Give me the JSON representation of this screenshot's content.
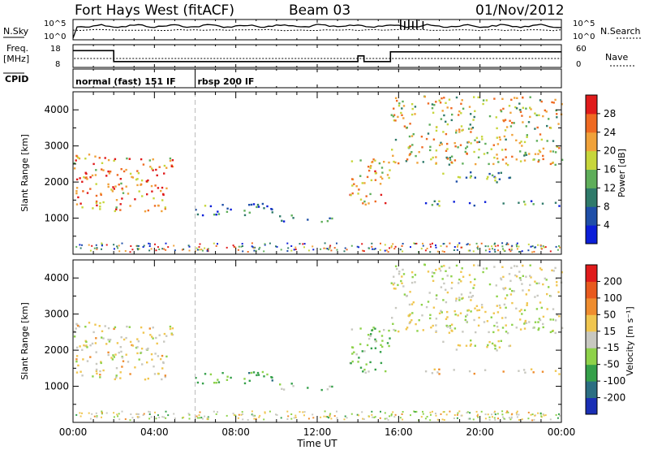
{
  "header": {
    "title": "Fort Hays West (fitACF)",
    "beam": "Beam 03",
    "date": "01/Nov/2012"
  },
  "noise_panel": {
    "left_label": "N.Sky",
    "right_label": "N.Search",
    "left_ticks": [
      "10^5",
      "10^0"
    ],
    "right_ticks": [
      "10^5",
      "10^0"
    ]
  },
  "freq_panel": {
    "left_label_line1": "Freq.",
    "left_label_line2": "[MHz]",
    "right_label": "Nave",
    "left_ticks": [
      "18",
      "8"
    ],
    "right_ticks": [
      "60",
      "0"
    ],
    "freq_steps": [
      {
        "t": 0.0,
        "mhz": 16.2
      },
      {
        "t": 2.0,
        "mhz": 10.6
      },
      {
        "t": 14.0,
        "mhz": 13.5
      },
      {
        "t": 14.3,
        "mhz": 10.6
      },
      {
        "t": 15.6,
        "mhz": 15.6
      },
      {
        "t": 24.0,
        "mhz": 15.6
      }
    ]
  },
  "cpid_panel": {
    "label": "CPID",
    "segments": [
      {
        "start": 0.0,
        "name": "normal (fast) 151 IF"
      },
      {
        "start": 6.0,
        "name": "rbsp 200 IF"
      }
    ]
  },
  "power_panel": {
    "ylabel": "Slant Range [km]",
    "yticks": [
      "1000",
      "2000",
      "3000",
      "4000"
    ],
    "cbar_label": "Power [dB]",
    "cbar_ticks": [
      "4",
      "8",
      "12",
      "16",
      "20",
      "24",
      "28"
    ],
    "cbar_colors": [
      "#0b1ed8",
      "#1f4fa8",
      "#2f7a6a",
      "#5fae5a",
      "#c7d63b",
      "#f0a23a",
      "#ef6a22",
      "#e01b1b"
    ]
  },
  "velocity_panel": {
    "ylabel": "Slant Range [km]",
    "yticks": [
      "1000",
      "2000",
      "3000",
      "4000"
    ],
    "cbar_label": "Velocity [m s⁻¹]",
    "cbar_ticks": [
      "200",
      "100",
      "50",
      "15",
      "-15",
      "-50",
      "-100",
      "-200"
    ],
    "cbar_colors": [
      "#1a2fb5",
      "#2b6e82",
      "#35a04a",
      "#8ed24a",
      "#c8c8c0",
      "#f0c650",
      "#ef8d2f",
      "#e85a1e",
      "#e01b1b"
    ]
  },
  "x_axis": {
    "label": "Time UT",
    "ticks": [
      "00:00",
      "04:00",
      "08:00",
      "12:00",
      "16:00",
      "20:00",
      "00:00"
    ]
  },
  "chart_data": {
    "type": "heatmap",
    "title": "Fort Hays West (fitACF)",
    "xlabel": "Time UT",
    "ylabel": "Slant Range [km]",
    "xlim": [
      0,
      24
    ],
    "ylim": [
      0,
      4500
    ],
    "x_unit": "hours UT",
    "dashed_marker_hour": 6.0,
    "series": [
      {
        "name": "Power [dB]",
        "range": [
          0,
          30
        ]
      },
      {
        "name": "Velocity [m s⁻¹]",
        "range": [
          -250,
          250
        ]
      }
    ],
    "regions": [
      {
        "t0": 0.0,
        "t1": 4.9,
        "r0": 1200,
        "r1": 2800,
        "power": 22,
        "velocity": -15
      },
      {
        "t0": 5.8,
        "t1": 10.2,
        "r0": 1100,
        "r1": 1450,
        "power": 9,
        "velocity": 60
      },
      {
        "t0": 10.0,
        "t1": 12.8,
        "r0": 900,
        "r1": 1100,
        "power": 8,
        "velocity": 40
      },
      {
        "t0": 13.5,
        "t1": 15.6,
        "r0": 1400,
        "r1": 2700,
        "power": 20,
        "velocity": 40
      },
      {
        "t0": 15.6,
        "t1": 24.0,
        "r0": 2500,
        "r1": 4400,
        "power": 18,
        "velocity": -5
      },
      {
        "t0": 17.0,
        "t1": 24.0,
        "r0": 1350,
        "r1": 1500,
        "power": 9,
        "velocity": -30
      },
      {
        "t0": 17.5,
        "t1": 21.5,
        "r0": 2000,
        "r1": 2300,
        "power": 10,
        "velocity": 5
      }
    ]
  }
}
